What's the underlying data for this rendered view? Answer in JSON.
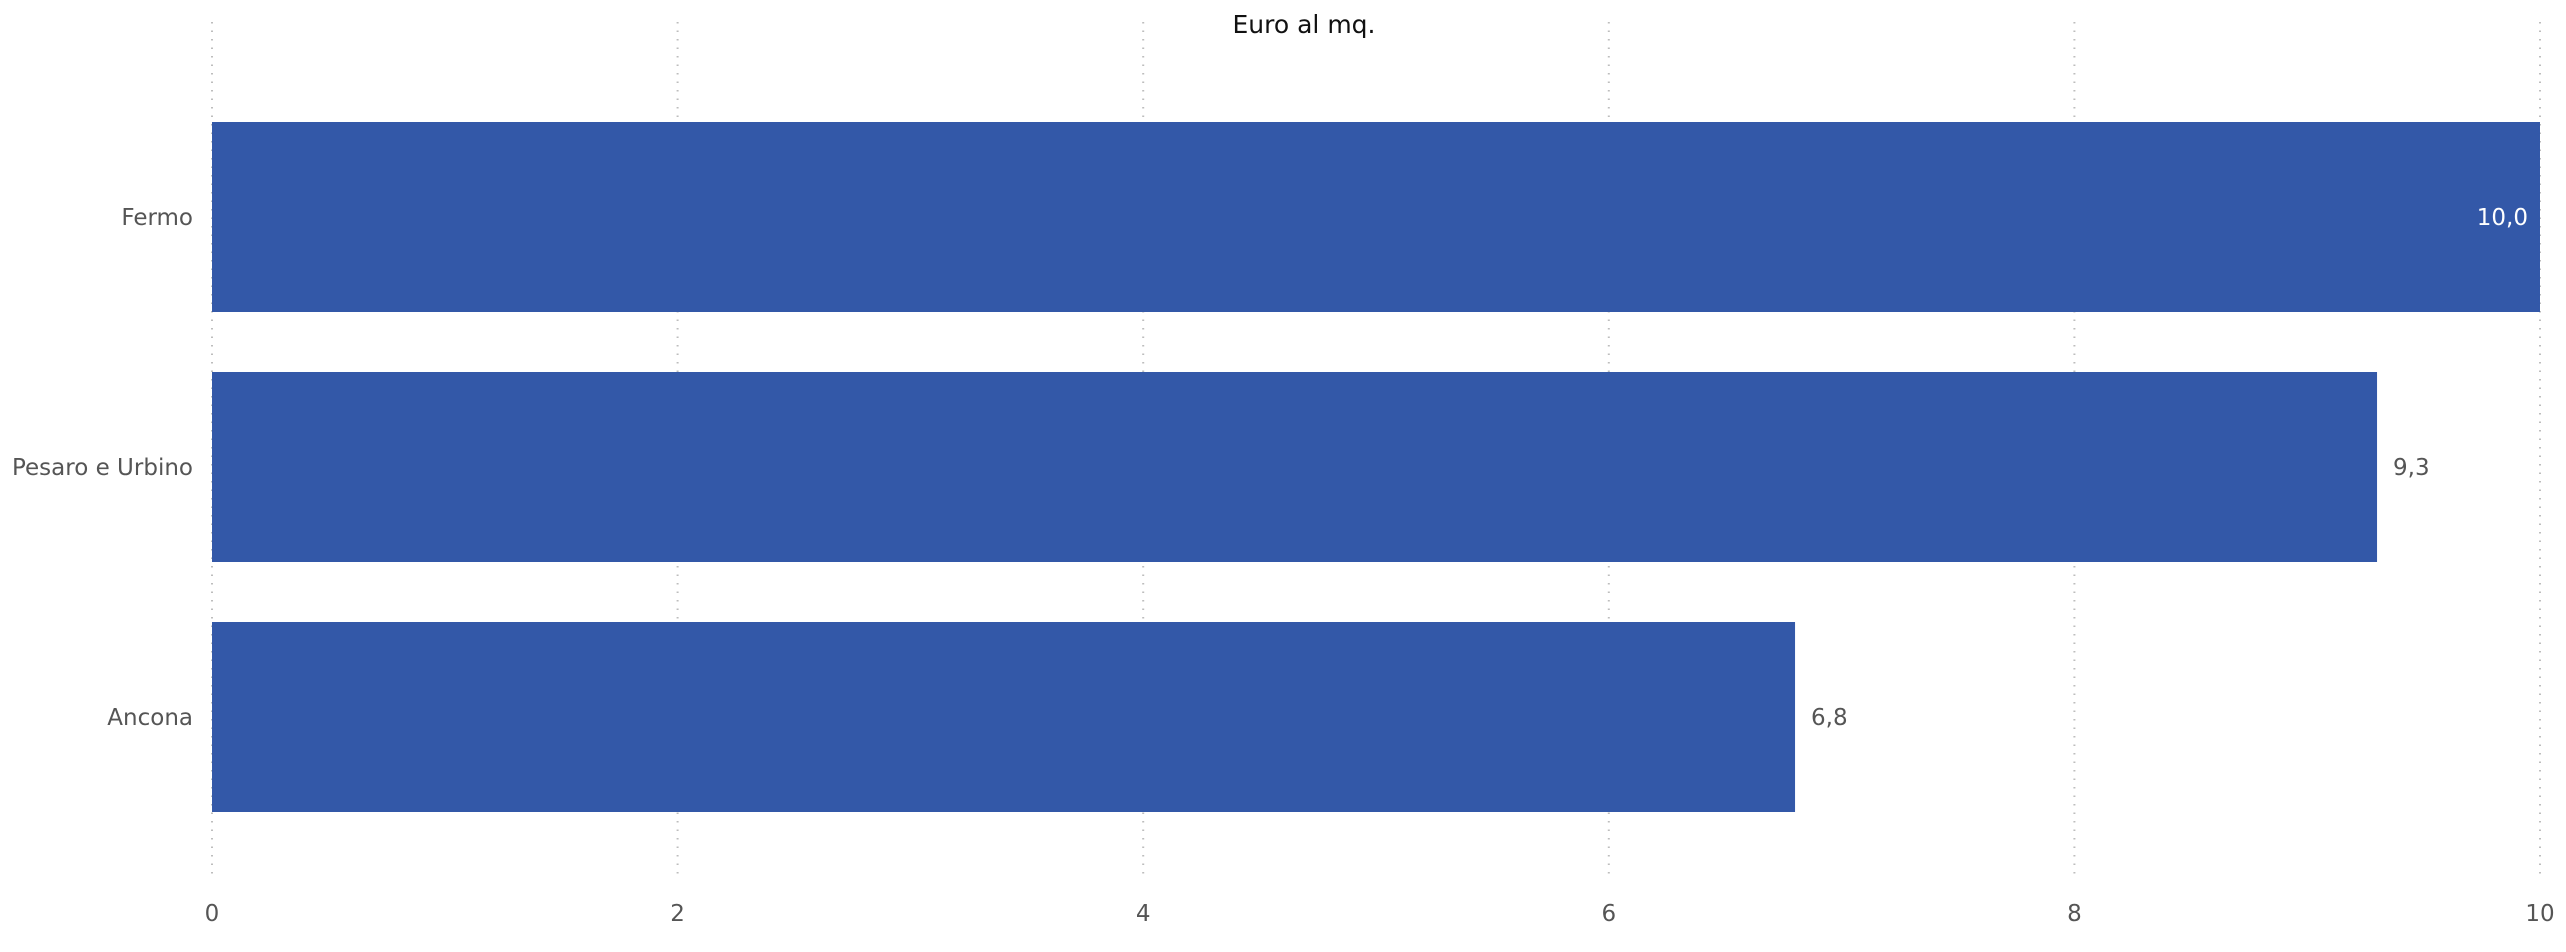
{
  "chart_data": {
    "type": "bar",
    "orientation": "horizontal",
    "title": "Euro al mq.",
    "categories": [
      "Fermo",
      "Pesaro e Urbino",
      "Ancona"
    ],
    "values": [
      10.0,
      9.3,
      6.8
    ],
    "value_labels": [
      "10,0",
      "9,3",
      "6,8"
    ],
    "xlim": [
      0,
      10
    ],
    "x_ticks": [
      0,
      2,
      4,
      6,
      8,
      10
    ],
    "xlabel": "",
    "ylabel": "",
    "grid": "vertical-dotted",
    "legend": "none",
    "colors": {
      "bar": "#3358a8",
      "value_label_inside": "#ffffff",
      "value_label_outside": "#555555"
    }
  }
}
